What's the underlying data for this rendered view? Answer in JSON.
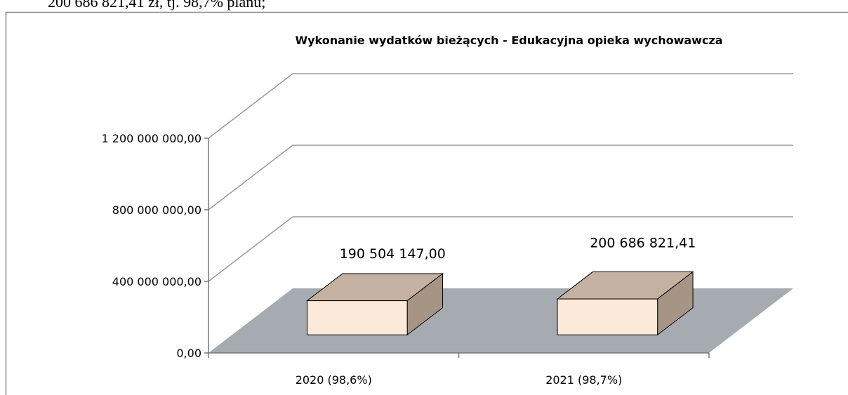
{
  "document_text": "200 686 821,41 zł, tj. 98,7% planu;",
  "chart_data": {
    "type": "bar3d",
    "title": "Wykonanie wydatków bieżących - Edukacyjna opieka wychowawcza",
    "categories": [
      "2020 (98,6%)",
      "2021 (98,7%)"
    ],
    "values": [
      190504147.0,
      200686821.41
    ],
    "value_labels": [
      "190 504 147,00",
      "200 686 821,41"
    ],
    "color": "#fde9d9",
    "ylim": [
      0,
      1200000000
    ],
    "yticks": [
      {
        "value": 0,
        "label": "0,00"
      },
      {
        "value": 400000000,
        "label": "400 000 000,00"
      },
      {
        "value": 800000000,
        "label": "800 000 000,00"
      },
      {
        "value": 1200000000,
        "label": "1 200 000 000,00"
      }
    ],
    "grid": true
  }
}
